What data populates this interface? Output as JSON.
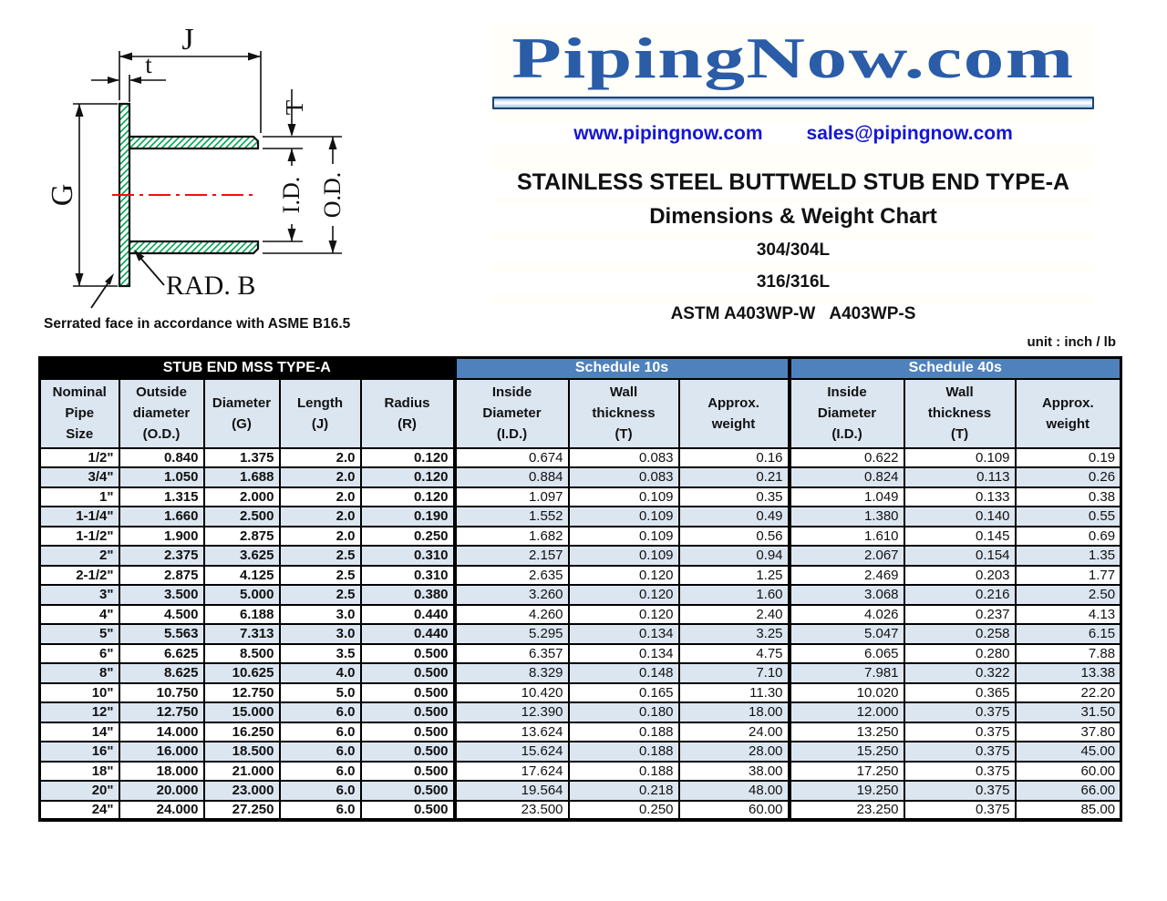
{
  "theme": {
    "brand-blue": "#2a5ca8",
    "link-blue": "#1515d4",
    "schedule-blue": "#4f81bd",
    "light-blue": "#dce6f1",
    "hatch-green": "#00a550",
    "centerline-red": "#ee1111"
  },
  "logo": {
    "text": "PipingNow.com",
    "website": "www.pipingnow.com",
    "email": "sales@pipingnow.com"
  },
  "heading": {
    "title": "STAINLESS STEEL BUTTWELD STUB END TYPE-A",
    "subtitle": "Dimensions & Weight Chart",
    "grades": [
      "304/304L",
      "316/316L"
    ],
    "spec": "ASTM A403WP-W   A403WP-S",
    "unit_label": "unit : inch / lb"
  },
  "diagram": {
    "labels": {
      "j": "J",
      "t": "t",
      "T": "T",
      "g": "G",
      "id": "I.D.",
      "od": "O.D.",
      "rad": "RAD. B",
      "note": "Serrated face in accordance with ASME B16.5"
    }
  },
  "table": {
    "groups": [
      {
        "label": "STUB END MSS TYPE-A"
      },
      {
        "label": "Schedule 10s"
      },
      {
        "label": "Schedule 40s"
      }
    ],
    "columns": [
      "Nominal\nPipe\nSize",
      "Outside\ndiameter\n(O.D.)",
      "Diameter\n(G)",
      "Length\n(J)",
      "Radius\n(R)",
      "Inside\nDiameter\n(I.D.)",
      "Wall\nthickness\n(T)",
      "Approx.\nweight",
      "Inside\nDiameter\n(I.D.)",
      "Wall\nthickness\n(T)",
      "Approx.\nweight"
    ],
    "rows": [
      [
        "1/2\"",
        "0.840",
        "1.375",
        "2.0",
        "0.120",
        "0.674",
        "0.083",
        "0.16",
        "0.622",
        "0.109",
        "0.19"
      ],
      [
        "3/4\"",
        "1.050",
        "1.688",
        "2.0",
        "0.120",
        "0.884",
        "0.083",
        "0.21",
        "0.824",
        "0.113",
        "0.26"
      ],
      [
        "1\"",
        "1.315",
        "2.000",
        "2.0",
        "0.120",
        "1.097",
        "0.109",
        "0.35",
        "1.049",
        "0.133",
        "0.38"
      ],
      [
        "1-1/4\"",
        "1.660",
        "2.500",
        "2.0",
        "0.190",
        "1.552",
        "0.109",
        "0.49",
        "1.380",
        "0.140",
        "0.55"
      ],
      [
        "1-1/2\"",
        "1.900",
        "2.875",
        "2.0",
        "0.250",
        "1.682",
        "0.109",
        "0.56",
        "1.610",
        "0.145",
        "0.69"
      ],
      [
        "2\"",
        "2.375",
        "3.625",
        "2.5",
        "0.310",
        "2.157",
        "0.109",
        "0.94",
        "2.067",
        "0.154",
        "1.35"
      ],
      [
        "2-1/2\"",
        "2.875",
        "4.125",
        "2.5",
        "0.310",
        "2.635",
        "0.120",
        "1.25",
        "2.469",
        "0.203",
        "1.77"
      ],
      [
        "3\"",
        "3.500",
        "5.000",
        "2.5",
        "0.380",
        "3.260",
        "0.120",
        "1.60",
        "3.068",
        "0.216",
        "2.50"
      ],
      [
        "4\"",
        "4.500",
        "6.188",
        "3.0",
        "0.440",
        "4.260",
        "0.120",
        "2.40",
        "4.026",
        "0.237",
        "4.13"
      ],
      [
        "5\"",
        "5.563",
        "7.313",
        "3.0",
        "0.440",
        "5.295",
        "0.134",
        "3.25",
        "5.047",
        "0.258",
        "6.15"
      ],
      [
        "6\"",
        "6.625",
        "8.500",
        "3.5",
        "0.500",
        "6.357",
        "0.134",
        "4.75",
        "6.065",
        "0.280",
        "7.88"
      ],
      [
        "8\"",
        "8.625",
        "10.625",
        "4.0",
        "0.500",
        "8.329",
        "0.148",
        "7.10",
        "7.981",
        "0.322",
        "13.38"
      ],
      [
        "10\"",
        "10.750",
        "12.750",
        "5.0",
        "0.500",
        "10.420",
        "0.165",
        "11.30",
        "10.020",
        "0.365",
        "22.20"
      ],
      [
        "12\"",
        "12.750",
        "15.000",
        "6.0",
        "0.500",
        "12.390",
        "0.180",
        "18.00",
        "12.000",
        "0.375",
        "31.50"
      ],
      [
        "14\"",
        "14.000",
        "16.250",
        "6.0",
        "0.500",
        "13.624",
        "0.188",
        "24.00",
        "13.250",
        "0.375",
        "37.80"
      ],
      [
        "16\"",
        "16.000",
        "18.500",
        "6.0",
        "0.500",
        "15.624",
        "0.188",
        "28.00",
        "15.250",
        "0.375",
        "45.00"
      ],
      [
        "18\"",
        "18.000",
        "21.000",
        "6.0",
        "0.500",
        "17.624",
        "0.188",
        "38.00",
        "17.250",
        "0.375",
        "60.00"
      ],
      [
        "20\"",
        "20.000",
        "23.000",
        "6.0",
        "0.500",
        "19.564",
        "0.218",
        "48.00",
        "19.250",
        "0.375",
        "66.00"
      ],
      [
        "24\"",
        "24.000",
        "27.250",
        "6.0",
        "0.500",
        "23.500",
        "0.250",
        "60.00",
        "23.250",
        "0.375",
        "85.00"
      ]
    ]
  }
}
